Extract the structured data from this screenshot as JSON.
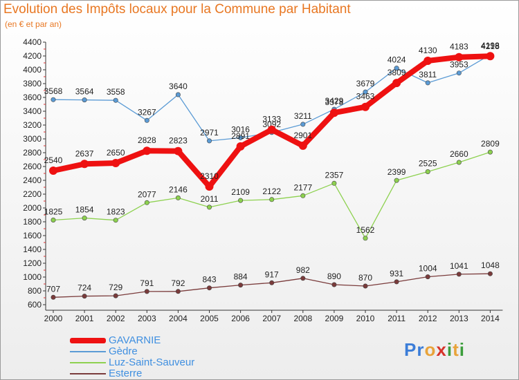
{
  "chart_data": {
    "type": "line",
    "title": "Evolution des Impôts locaux pour la Commune par Habitant",
    "subtitle": "(en € et par an)",
    "x": [
      "2000",
      "2001",
      "2002",
      "2003",
      "2004",
      "2005",
      "2006",
      "2007",
      "2008",
      "2009",
      "2010",
      "2011",
      "2012",
      "2013",
      "2014"
    ],
    "ylim": [
      600,
      4400
    ],
    "yticks": [
      600,
      800,
      1000,
      1200,
      1400,
      1600,
      1800,
      2000,
      2200,
      2400,
      2600,
      2800,
      3000,
      3200,
      3400,
      3600,
      3800,
      4000,
      4200,
      4400
    ],
    "ytick_labels": [
      "600",
      "800",
      "1000",
      "1200",
      "1400",
      "1600",
      "1800",
      "2000",
      "2200",
      "2400",
      "2600",
      "2800",
      "3000",
      "3200",
      "3400",
      "3600",
      "3800",
      "4000",
      "4200",
      "4400"
    ],
    "series": [
      {
        "name": "Gèdre",
        "color": "#5b9bd5",
        "values": [
          3568,
          3564,
          3558,
          3267,
          3640,
          2971,
          3016,
          3092,
          3211,
          3429,
          3679,
          4024,
          3811,
          3953,
          4218
        ],
        "labels": [
          "3568",
          "3564",
          "3558",
          "3267",
          "3640",
          "2971",
          "3016",
          "3092",
          "3211",
          "3429",
          "3679",
          "4024",
          "3811",
          "3953",
          "4218"
        ]
      },
      {
        "name": "Luz-Saint-Sauveur",
        "color": "#8dd14f",
        "values": [
          1825,
          1854,
          1823,
          2077,
          2146,
          2011,
          2109,
          2122,
          2177,
          2357,
          1562,
          2399,
          2525,
          2660,
          2809
        ],
        "labels": [
          "1825",
          "1854",
          "1823",
          "2077",
          "2146",
          "2011",
          "2109",
          "2122",
          "2177",
          "2357",
          "1562",
          "2399",
          "2525",
          "2660",
          "2809"
        ]
      },
      {
        "name": "Esterre",
        "color": "#7a3b3b",
        "values": [
          707,
          724,
          729,
          791,
          792,
          843,
          884,
          917,
          982,
          890,
          870,
          931,
          1004,
          1041,
          1048
        ],
        "labels": [
          "707",
          "724",
          "729",
          "791",
          "792",
          "843",
          "884",
          "917",
          "982",
          "890",
          "870",
          "931",
          "1004",
          "1041",
          "1048"
        ]
      },
      {
        "name": "GAVARNIE",
        "color": "#ee1111",
        "values": [
          2540,
          2637,
          2650,
          2828,
          2823,
          2310,
          2891,
          3133,
          2901,
          3378,
          3463,
          3809,
          4130,
          4183,
          4198
        ],
        "labels": [
          "2540",
          "2637",
          "2650",
          "2828",
          "2823",
          "2310",
          "2891",
          "3133",
          "2901",
          "3378",
          "3463",
          "3809",
          "4130",
          "4183",
          "4198"
        ]
      }
    ],
    "legend": [
      "GAVARNIE",
      "Gèdre",
      "Luz-Saint-Sauveur",
      "Esterre"
    ],
    "grid": false,
    "legend_position": "bottom-left"
  },
  "logo": {
    "text": "Proxiti"
  }
}
